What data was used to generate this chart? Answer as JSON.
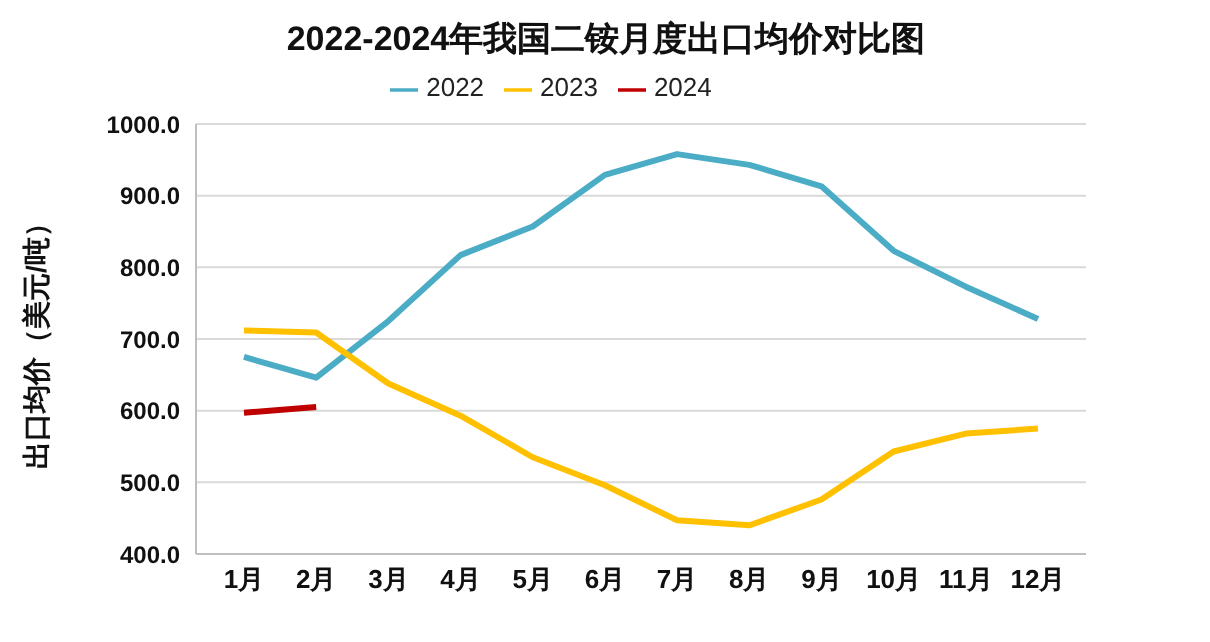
{
  "chart_data": {
    "type": "line",
    "title": "2022-2024年我国二铵月度出口均价对比图",
    "ylabel": "出口均价（美元/吨）",
    "categories": [
      "1月",
      "2月",
      "3月",
      "4月",
      "5月",
      "6月",
      "7月",
      "8月",
      "9月",
      "10月",
      "11月",
      "12月"
    ],
    "series": [
      {
        "name": "2022",
        "color": "#4bacc6",
        "values": [
          675,
          646,
          725,
          817,
          857,
          929,
          958,
          943,
          913,
          823,
          773,
          728
        ]
      },
      {
        "name": "2023",
        "color": "#ffc000",
        "values": [
          712,
          709,
          638,
          593,
          535,
          496,
          447,
          440,
          476,
          543,
          568,
          575
        ]
      },
      {
        "name": "2024",
        "color": "#c00000",
        "values": [
          597,
          605,
          null,
          null,
          null,
          null,
          null,
          null,
          null,
          null,
          null,
          null
        ]
      }
    ],
    "ylim": [
      400,
      1000
    ],
    "yticks": [
      {
        "value": 400,
        "label": "400.0"
      },
      {
        "value": 500,
        "label": "500.0"
      },
      {
        "value": 600,
        "label": "600.0"
      },
      {
        "value": 700,
        "label": "700.0"
      },
      {
        "value": 800,
        "label": "800.0"
      },
      {
        "value": 900,
        "label": "900.0"
      },
      {
        "value": 1000,
        "label": "1000.0"
      }
    ],
    "grid": "y",
    "legend": "top",
    "marker": "none",
    "line_style": "solid"
  }
}
